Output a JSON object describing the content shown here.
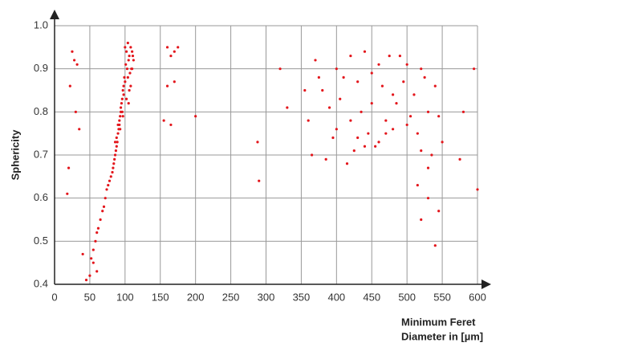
{
  "chart_data": {
    "type": "scatter",
    "ylabel": "Sphericity",
    "xlabel": [
      "Minimum Feret",
      "Diameter in [µm]"
    ],
    "color": "#e3161c",
    "xlim": [
      0,
      600
    ],
    "xticks": [
      0,
      50,
      100,
      150,
      200,
      250,
      300,
      350,
      400,
      450,
      500,
      550,
      600
    ],
    "ylim": [
      0.4,
      1.0
    ],
    "yticks": [
      0.4,
      0.5,
      0.6,
      0.7,
      0.8,
      0.9,
      {
        "value": 1.0,
        "label": "1.0"
      }
    ],
    "grid": true,
    "x": [
      100,
      102,
      104,
      106,
      108,
      110,
      112,
      101,
      103,
      105,
      107,
      109,
      111,
      99,
      98,
      97,
      96,
      95,
      94,
      93,
      92,
      91,
      90,
      89,
      88,
      87,
      86,
      85,
      84,
      83,
      82,
      80,
      78,
      76,
      74,
      72,
      70,
      68,
      65,
      62,
      60,
      58,
      55,
      52,
      100,
      104,
      108,
      96,
      92,
      88,
      106,
      110,
      98,
      94,
      90,
      86,
      102,
      105,
      97,
      93,
      25,
      28,
      32,
      22,
      30,
      20,
      18,
      35,
      160,
      165,
      170,
      175,
      160,
      170,
      155,
      165,
      200,
      288,
      290,
      320,
      330,
      600,
      595,
      580,
      575,
      540,
      530,
      520,
      515,
      530,
      545,
      45,
      50,
      55,
      60,
      40,
      360,
      370,
      380,
      390,
      400,
      410,
      420,
      430,
      440,
      450,
      460,
      470,
      480,
      490,
      500,
      510,
      520,
      530,
      540,
      550,
      365,
      385,
      405,
      425,
      445,
      465,
      485,
      505,
      525,
      545,
      375,
      395,
      415,
      435,
      455,
      475,
      495,
      515,
      535,
      355,
      400,
      420,
      440,
      460,
      480,
      500,
      520,
      430,
      450,
      470
    ],
    "values": [
      0.95,
      0.94,
      0.96,
      0.93,
      0.95,
      0.94,
      0.92,
      0.91,
      0.9,
      0.92,
      0.89,
      0.9,
      0.93,
      0.88,
      0.86,
      0.85,
      0.83,
      0.82,
      0.8,
      0.79,
      0.77,
      0.76,
      0.75,
      0.73,
      0.72,
      0.71,
      0.7,
      0.69,
      0.68,
      0.67,
      0.66,
      0.65,
      0.64,
      0.63,
      0.62,
      0.6,
      0.58,
      0.57,
      0.55,
      0.53,
      0.52,
      0.5,
      0.48,
      0.46,
      0.87,
      0.88,
      0.86,
      0.8,
      0.78,
      0.74,
      0.85,
      0.9,
      0.84,
      0.81,
      0.77,
      0.73,
      0.83,
      0.82,
      0.79,
      0.76,
      0.94,
      0.92,
      0.91,
      0.86,
      0.8,
      0.67,
      0.61,
      0.76,
      0.95,
      0.93,
      0.94,
      0.95,
      0.86,
      0.87,
      0.78,
      0.77,
      0.79,
      0.73,
      0.64,
      0.9,
      0.81,
      0.62,
      0.9,
      0.8,
      0.69,
      0.49,
      0.6,
      0.55,
      0.63,
      0.67,
      0.57,
      0.41,
      0.42,
      0.45,
      0.43,
      0.47,
      0.78,
      0.92,
      0.85,
      0.81,
      0.76,
      0.88,
      0.93,
      0.74,
      0.72,
      0.89,
      0.91,
      0.78,
      0.76,
      0.93,
      0.77,
      0.84,
      0.9,
      0.8,
      0.86,
      0.73,
      0.7,
      0.69,
      0.83,
      0.71,
      0.75,
      0.86,
      0.82,
      0.79,
      0.88,
      0.79,
      0.88,
      0.74,
      0.68,
      0.8,
      0.72,
      0.93,
      0.87,
      0.75,
      0.7,
      0.85,
      0.9,
      0.78,
      0.94,
      0.73,
      0.84,
      0.91,
      0.71,
      0.87,
      0.82,
      0.75
    ]
  }
}
